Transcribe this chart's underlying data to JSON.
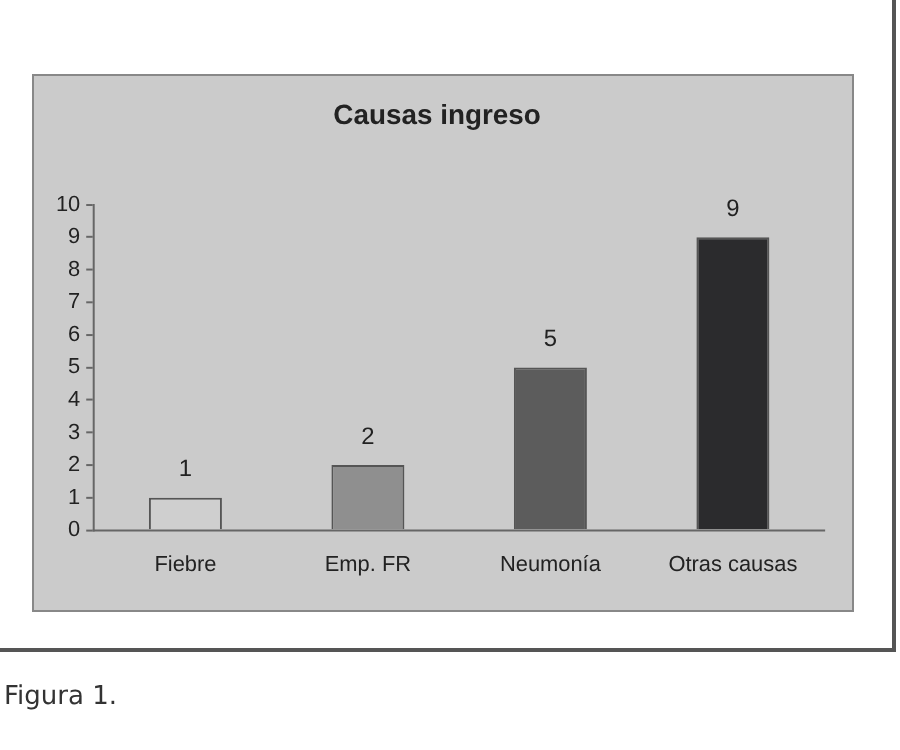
{
  "chart_data": {
    "type": "bar",
    "title": "Causas ingreso",
    "categories": [
      "Fiebre",
      "Emp. FR",
      "Neumonía",
      "Otras causas"
    ],
    "values": [
      1,
      2,
      5,
      9
    ],
    "colors": [
      "#cfcfcf",
      "#8f8f8f",
      "#5c5c5c",
      "#2b2b2d"
    ],
    "ylim": [
      0,
      10
    ],
    "yticks": [
      0,
      1,
      2,
      3,
      4,
      5,
      6,
      7,
      8,
      9,
      10
    ],
    "grid": false,
    "legend": false,
    "data_labels": true,
    "annotations": [
      "Figura 1."
    ]
  }
}
